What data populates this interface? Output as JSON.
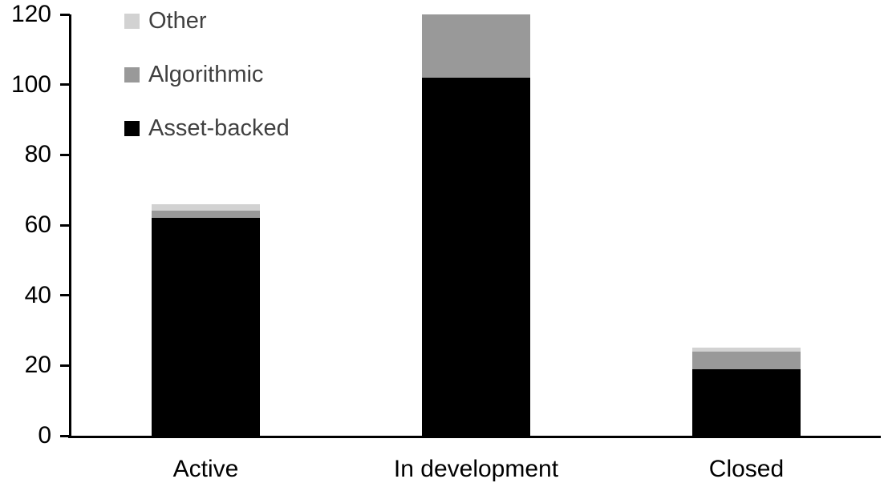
{
  "chart_data": {
    "type": "bar",
    "subtype": "stacked-vertical",
    "title": "",
    "xlabel": "",
    "ylabel": "",
    "categories": [
      "Active",
      "In development",
      "Closed"
    ],
    "series": [
      {
        "name": "Asset-backed",
        "color": "#000000",
        "values": [
          62,
          102,
          19
        ]
      },
      {
        "name": "Algorithmic",
        "color": "#999999",
        "values": [
          2,
          18,
          5
        ]
      },
      {
        "name": "Other",
        "color": "#d2d2d2",
        "values": [
          2,
          0,
          1
        ]
      }
    ],
    "totals": [
      66,
      120,
      25
    ],
    "y_axis": {
      "min": 0,
      "max": 120,
      "tick_step": 20,
      "ticks": [
        "0",
        "20",
        "40",
        "60",
        "80",
        "100",
        "120"
      ],
      "grid": false
    },
    "legend": {
      "position": "top-left",
      "order": [
        "Other",
        "Algorithmic",
        "Asset-backed"
      ]
    },
    "colors": {
      "axis": "#000000",
      "tick_label": "#000000",
      "category_label": "#000000",
      "legend_text": "#404040",
      "background": "#ffffff"
    }
  }
}
